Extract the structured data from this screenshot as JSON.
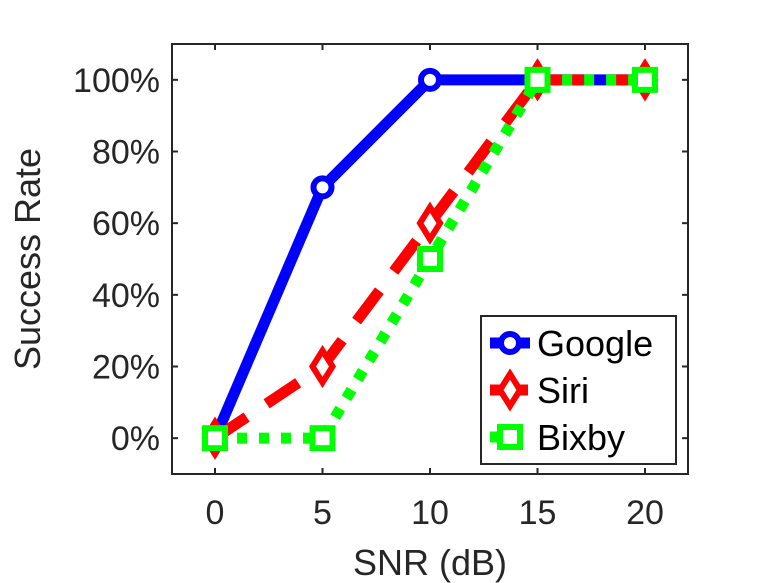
{
  "chart_data": {
    "type": "line",
    "title": "",
    "xlabel": "SNR (dB)",
    "ylabel": "Success Rate",
    "xlim": [
      -2,
      22
    ],
    "ylim": [
      -10,
      110
    ],
    "x": [
      0,
      5,
      10,
      15,
      20
    ],
    "xticks": [
      0,
      5,
      10,
      15,
      20
    ],
    "xtick_labels": [
      "0",
      "5",
      "10",
      "15",
      "20"
    ],
    "yticks": [
      0,
      20,
      40,
      60,
      80,
      100
    ],
    "ytick_labels": [
      "0%",
      "20%",
      "40%",
      "60%",
      "80%",
      "100%"
    ],
    "grid": false,
    "legend_position": "bottom-right",
    "series": [
      {
        "name": "Google",
        "values": [
          0,
          70,
          100,
          100,
          100
        ],
        "color": "#0000ff",
        "line_style": "solid",
        "marker": "circle"
      },
      {
        "name": "Siri",
        "values": [
          0,
          20,
          60,
          100,
          100
        ],
        "color": "#ff0000",
        "line_style": "dashed",
        "marker": "diamond"
      },
      {
        "name": "Bixby",
        "values": [
          0,
          0,
          50,
          100,
          100
        ],
        "color": "#00ff00",
        "line_style": "dotted",
        "marker": "square"
      }
    ]
  }
}
